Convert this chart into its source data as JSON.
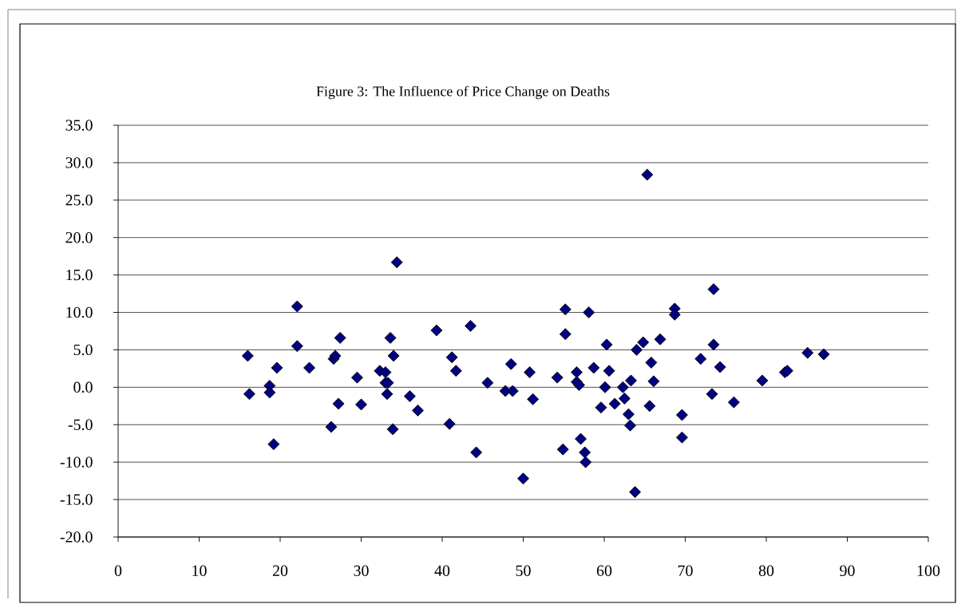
{
  "chart_data": {
    "type": "scatter",
    "title": "Figure 3: The Influence of Price Change on Deaths",
    "x": [
      16.0,
      16.2,
      18.7,
      18.7,
      19.2,
      19.6,
      22.1,
      22.1,
      23.6,
      26.3,
      26.6,
      26.8,
      27.2,
      27.4,
      29.5,
      30.0,
      32.3,
      33.0,
      33.0,
      33.2,
      33.3,
      33.6,
      33.9,
      34.0,
      34.4,
      36.0,
      37.0,
      39.3,
      40.9,
      41.2,
      41.7,
      43.5,
      44.2,
      45.6,
      47.8,
      48.5,
      48.7,
      50.0,
      50.8,
      51.2,
      54.2,
      54.9,
      55.2,
      55.2,
      56.6,
      56.6,
      56.9,
      57.1,
      57.6,
      57.7,
      58.1,
      58.7,
      59.6,
      60.1,
      60.3,
      60.6,
      61.3,
      62.3,
      62.5,
      63.0,
      63.2,
      63.3,
      63.8,
      64.0,
      64.8,
      65.3,
      65.6,
      65.8,
      66.1,
      66.9,
      68.7,
      68.7,
      69.6,
      69.6,
      71.9,
      73.3,
      73.5,
      73.5,
      74.3,
      76.0,
      79.5,
      82.3,
      82.6,
      85.1,
      87.1
    ],
    "values": [
      4.2,
      -0.9,
      0.2,
      -0.7,
      -7.6,
      2.6,
      10.8,
      5.5,
      2.6,
      -5.3,
      3.8,
      4.2,
      -2.2,
      6.6,
      1.3,
      -2.3,
      2.2,
      2.0,
      0.6,
      -0.9,
      0.6,
      6.6,
      -5.6,
      4.2,
      16.7,
      -1.2,
      -3.1,
      7.6,
      -4.9,
      4.0,
      2.2,
      8.2,
      -8.7,
      0.6,
      -0.5,
      3.1,
      -0.5,
      -12.2,
      2.0,
      -1.6,
      1.3,
      -8.3,
      10.4,
      7.1,
      2.0,
      0.7,
      0.3,
      -6.9,
      -8.7,
      -10.0,
      10.0,
      2.6,
      -2.7,
      0.0,
      5.7,
      2.2,
      -2.2,
      0.0,
      -1.5,
      -3.6,
      -5.1,
      0.9,
      -14.0,
      5.0,
      6.0,
      28.4,
      -2.5,
      3.3,
      0.8,
      6.4,
      10.5,
      9.7,
      -3.7,
      -6.7,
      3.8,
      -0.9,
      13.1,
      5.7,
      2.7,
      -2.0,
      0.9,
      2.0,
      2.2,
      4.6,
      4.4
    ],
    "color": "#000080",
    "marker": "diamond",
    "grid": "y",
    "xlim": [
      0,
      100
    ],
    "xticks": [
      0,
      10,
      20,
      30,
      40,
      50,
      60,
      70,
      80,
      90,
      100
    ],
    "ylim": [
      -20,
      35
    ],
    "yticks": [
      {
        "value": -20,
        "label": "-20.0"
      },
      {
        "value": -15,
        "label": "-15.0"
      },
      {
        "value": -10,
        "label": "-10.0"
      },
      {
        "value": -5,
        "label": "-5.0"
      },
      {
        "value": 0,
        "label": "0.0"
      },
      {
        "value": 5,
        "label": "5.0"
      },
      {
        "value": 10,
        "label": "10.0"
      },
      {
        "value": 15,
        "label": "15.0"
      },
      {
        "value": 20,
        "label": "20.0"
      },
      {
        "value": 25,
        "label": "25.0"
      },
      {
        "value": 30,
        "label": "30.0"
      },
      {
        "value": 35,
        "label": "35.0"
      }
    ]
  }
}
